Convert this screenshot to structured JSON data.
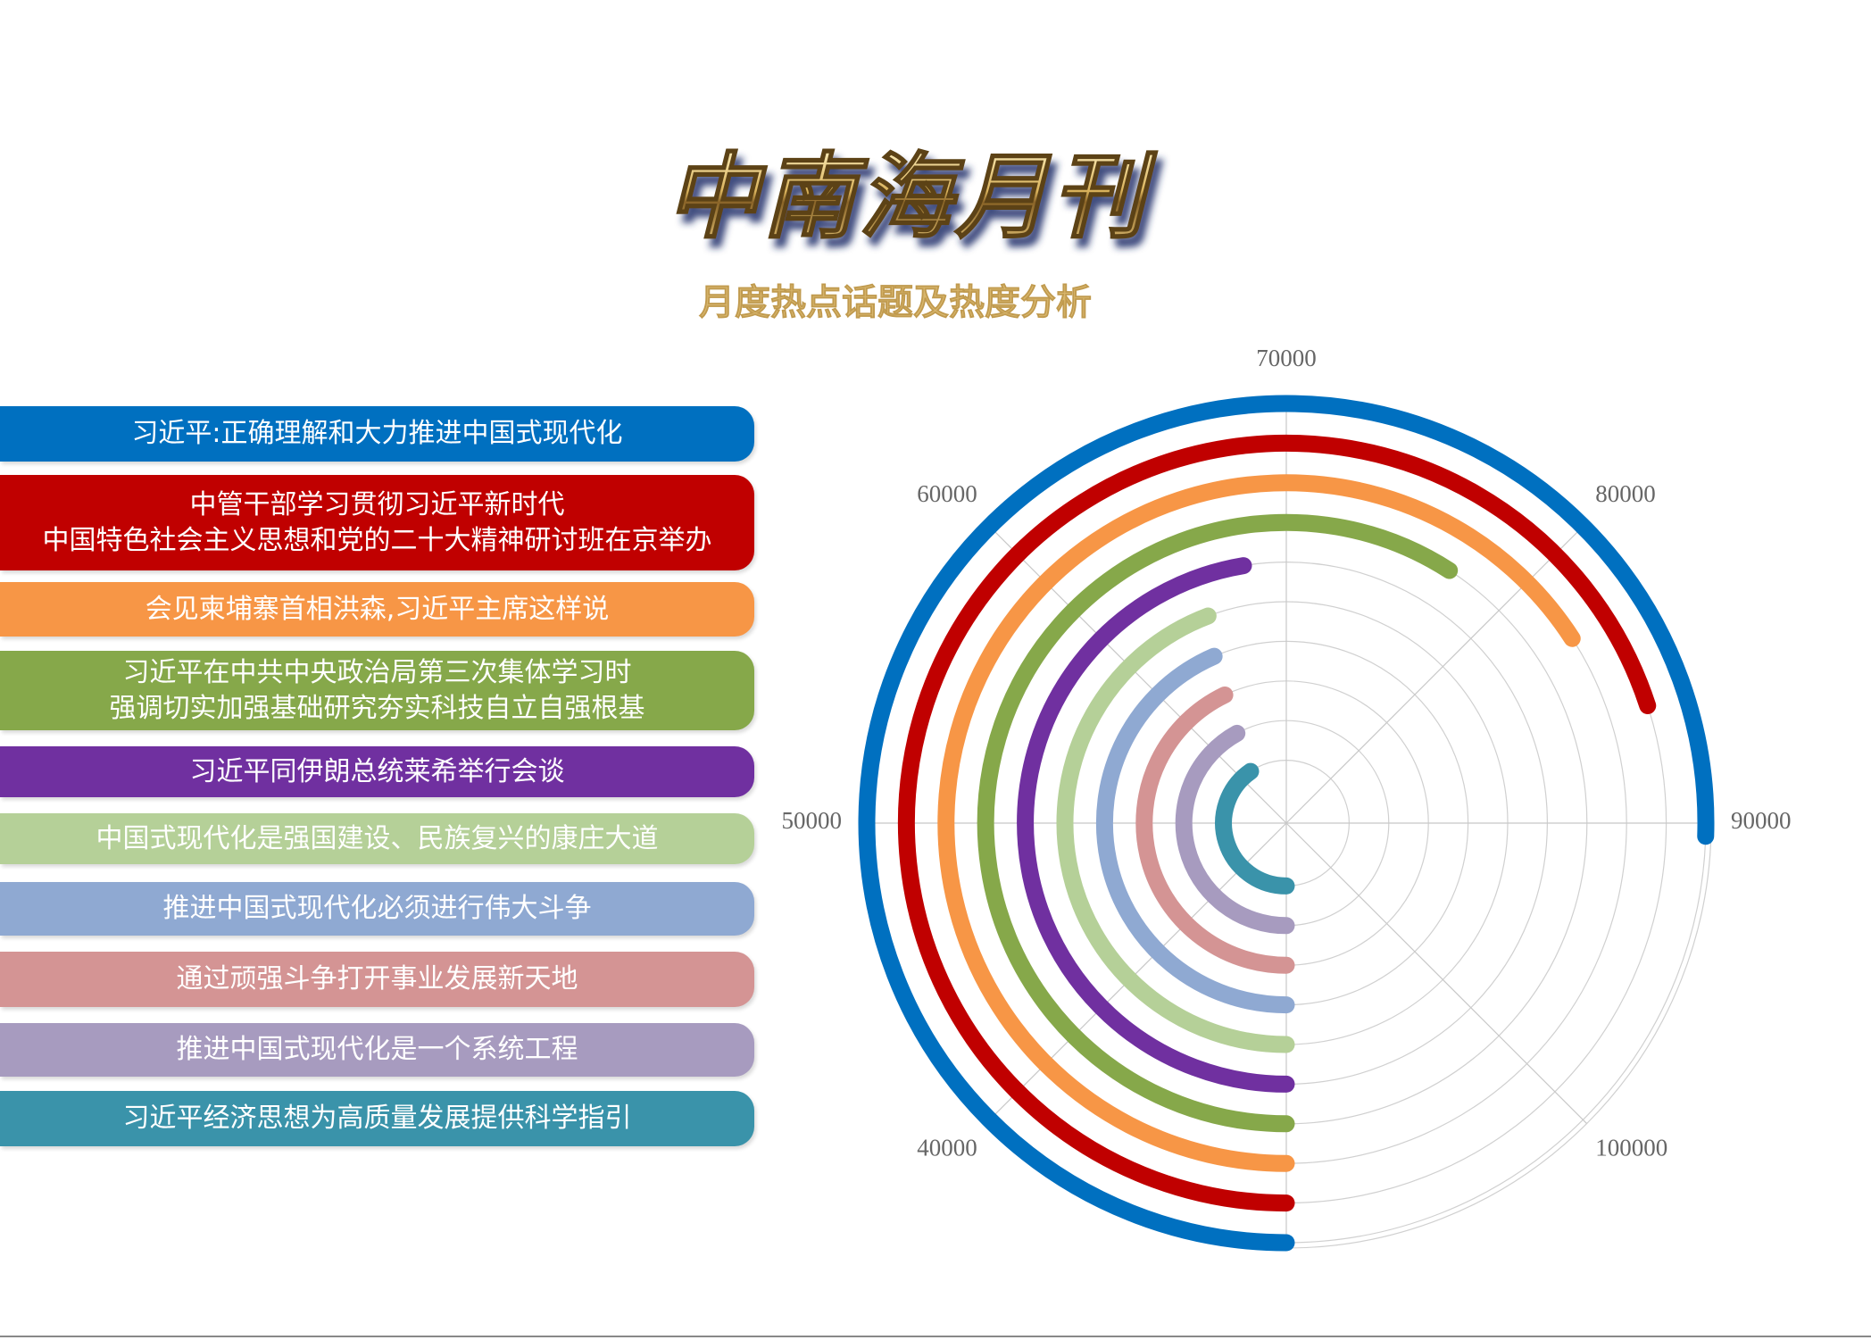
{
  "chart_data": {
    "type": "radial-bar",
    "title": "中南海月刊",
    "subtitle": "月度热点话题及热度分析",
    "categories": [
      "习近平:正确理解和大力推进中国式现代化",
      "中管干部学习贯彻习近平新时代\n中国特色社会主义思想和党的二十大精神研讨班在京举办",
      "会见柬埔寨首相洪森,习近平主席这样说",
      "习近平在中共中央政治局第三次集体学习时\n强调切实加强基础研究夯实科技自立自强根基",
      "习近平同伊朗总统莱希举行会谈",
      "中国式现代化是强国建设、民族复兴的康庄大道",
      "推进中国式现代化必须进行伟大斗争",
      "通过顽强斗争打开事业发展新天地",
      "推进中国式现代化是一个系统工程",
      "习近平经济思想为高质量发展提供科学指引"
    ],
    "values": [
      90400,
      86000,
      82700,
      77300,
      67900,
      65400,
      64800,
      64300,
      63600,
      62300
    ],
    "colors": [
      "#0070c0",
      "#c00000",
      "#f79646",
      "#86a84a",
      "#7030a0",
      "#b5d098",
      "#8fa9d2",
      "#d49494",
      "#a79bbf",
      "#3a93aa"
    ],
    "xlim": [
      30000,
      110000
    ],
    "xticks": [
      40000,
      50000,
      60000,
      70000,
      80000,
      90000,
      100000
    ],
    "grid": true
  }
}
